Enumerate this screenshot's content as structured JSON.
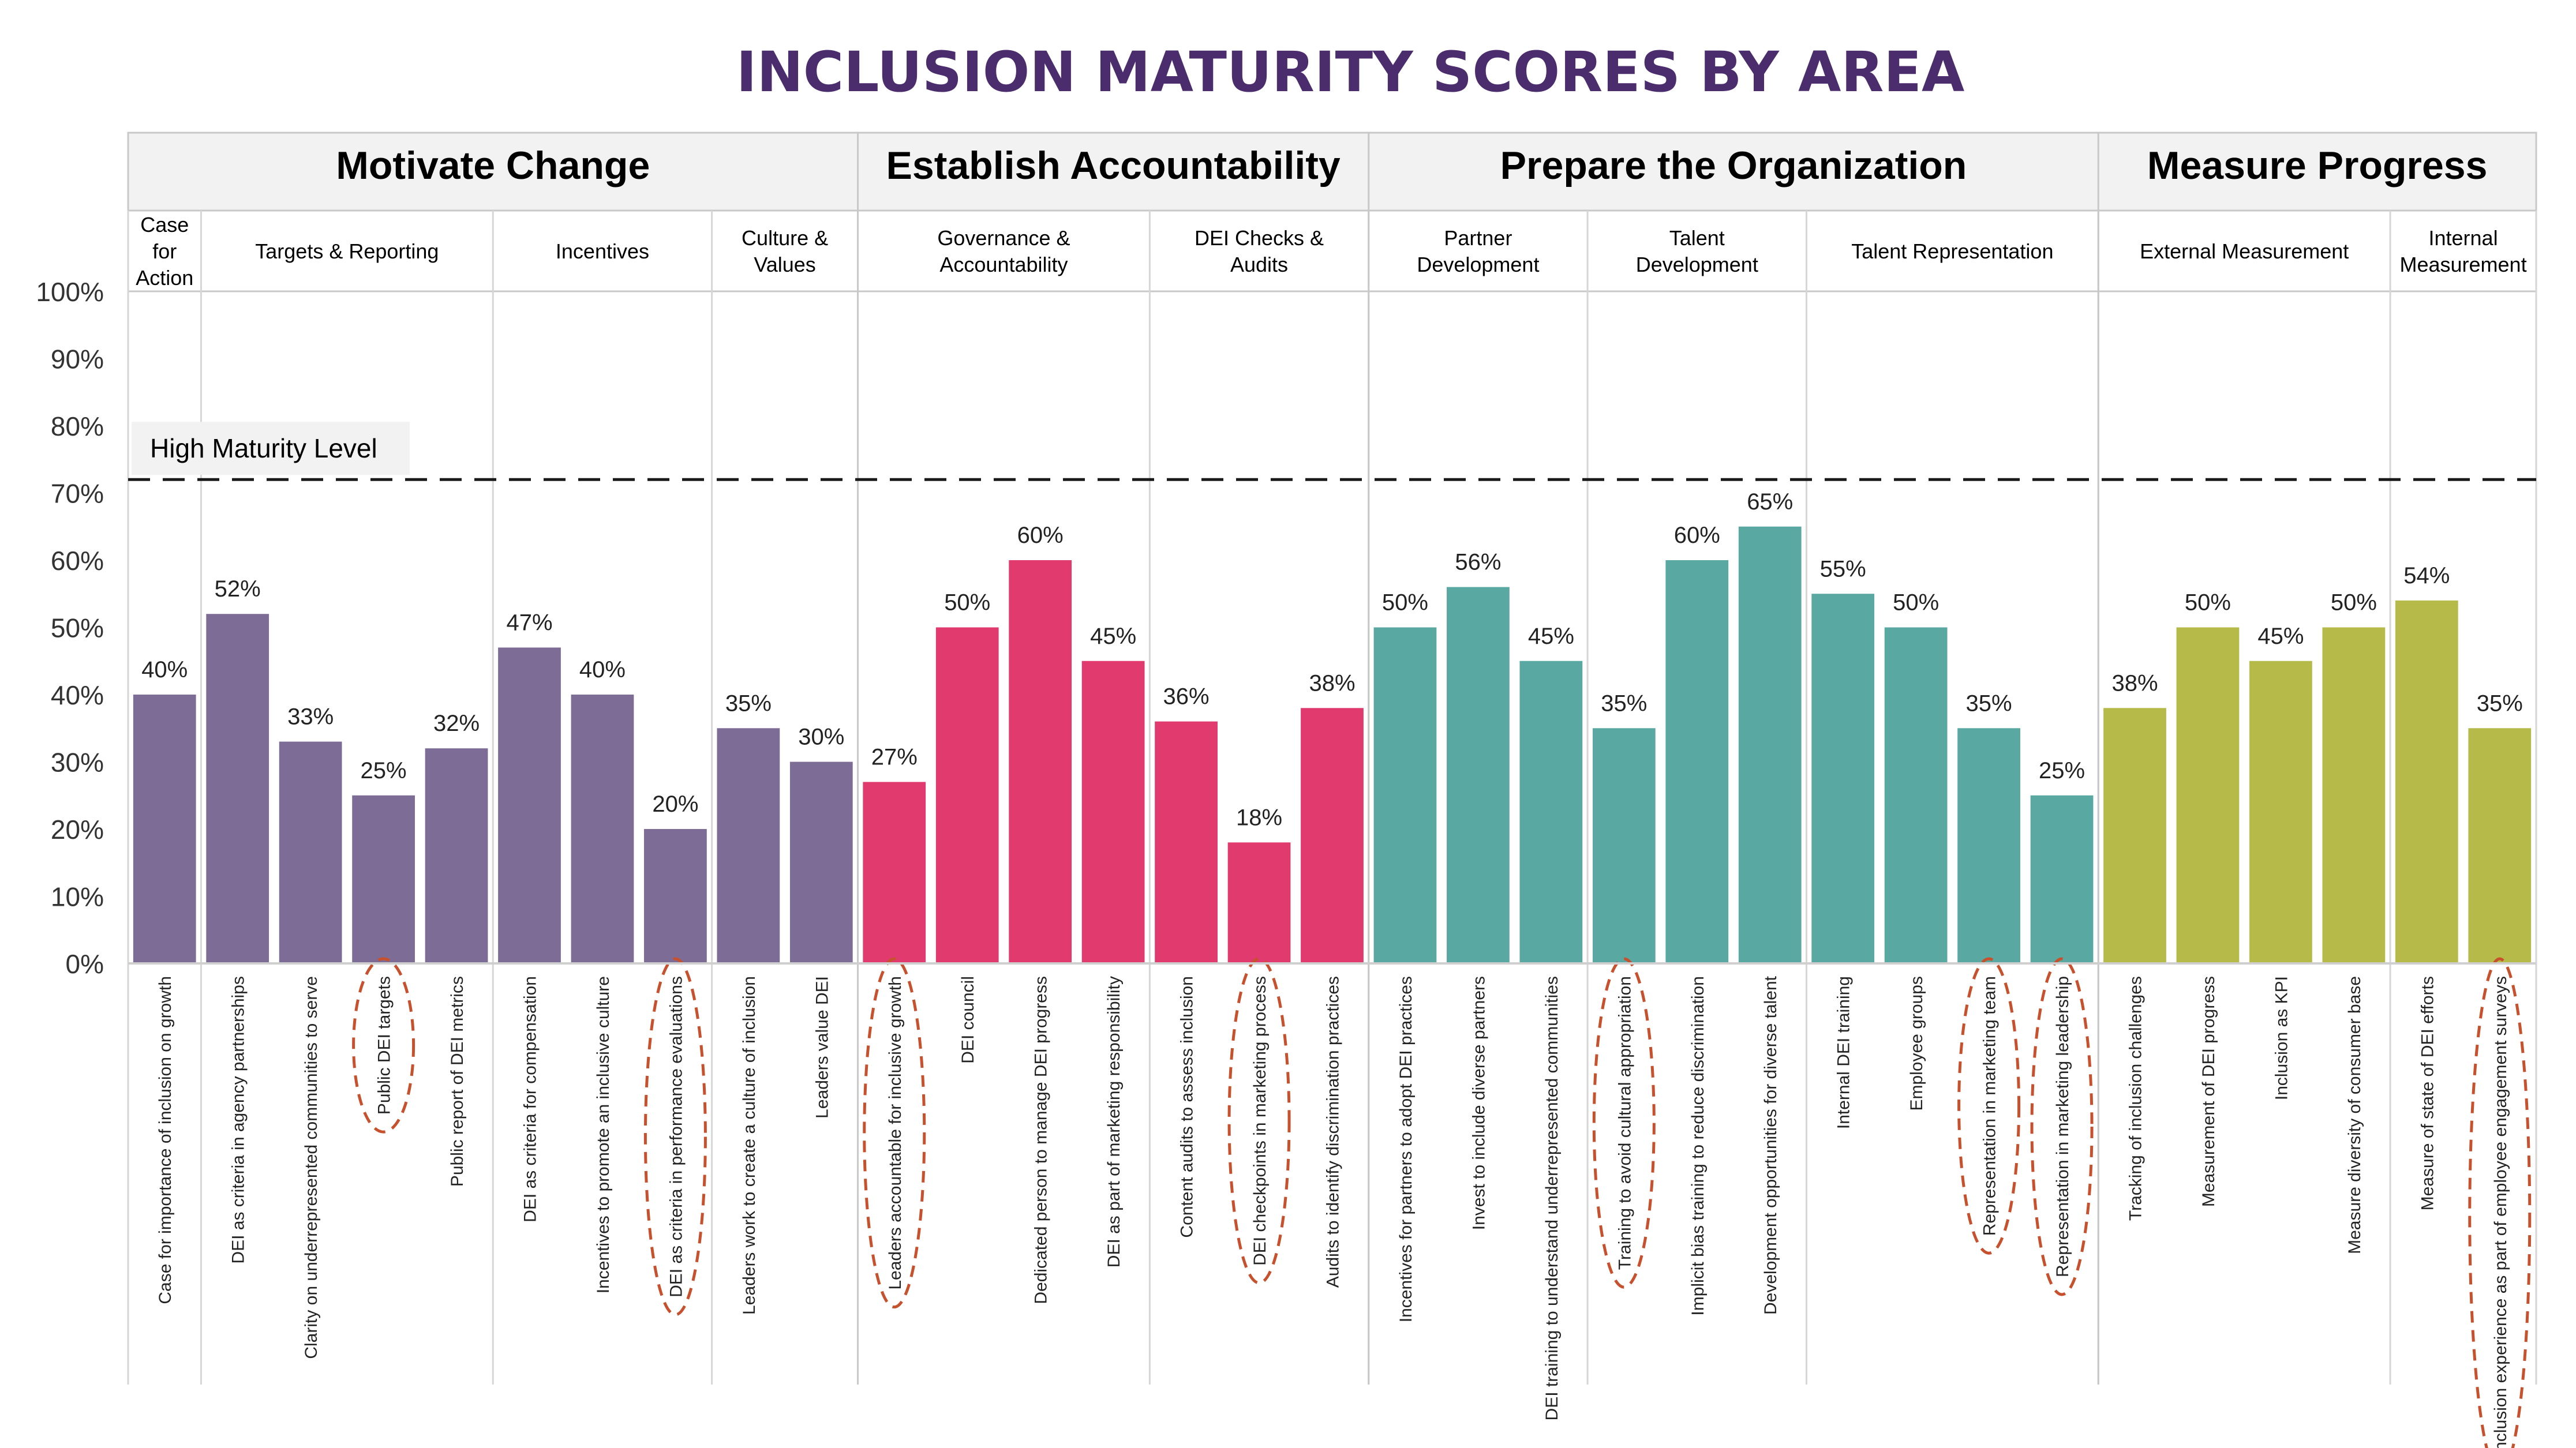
{
  "chart_data": {
    "type": "bar",
    "title": "INCLUSION MATURITY SCORES BY AREA",
    "ylim": [
      0,
      100
    ],
    "yticks": [
      "0%",
      "10%",
      "20%",
      "30%",
      "40%",
      "50%",
      "60%",
      "70%",
      "80%",
      "90%",
      "100%"
    ],
    "value_suffix": "%",
    "reference_line": {
      "label": "High Maturity Level",
      "value": 72,
      "style": "dashed"
    },
    "groups": [
      {
        "name": "Motivate Change",
        "color": "#7d6c96",
        "subgroups": [
          {
            "name": "Case for Action",
            "lines": [
              "Case",
              "for",
              "Action"
            ],
            "items": [
              {
                "label": "Case for importance of inclusion on growth",
                "value": 40,
                "circled": false
              }
            ]
          },
          {
            "name": "Targets & Reporting",
            "lines": [
              "Targets & Reporting"
            ],
            "items": [
              {
                "label": "DEI as criteria in agency partnerships",
                "value": 52,
                "circled": false
              },
              {
                "label": "Clarity on underrepresented communities to serve",
                "value": 33,
                "circled": false
              },
              {
                "label": "Public DEI targets",
                "value": 25,
                "circled": true
              },
              {
                "label": "Public report of DEI metrics",
                "value": 32,
                "circled": false
              }
            ]
          },
          {
            "name": "Incentives",
            "lines": [
              "Incentives"
            ],
            "items": [
              {
                "label": "DEI as criteria for compensation",
                "value": 47,
                "circled": false
              },
              {
                "label": "Incentives to promote an inclusive culture",
                "value": 40,
                "circled": false
              },
              {
                "label": "DEI as criteria in performance evaluations",
                "value": 20,
                "circled": true
              }
            ]
          },
          {
            "name": "Culture & Values",
            "lines": [
              "Culture &",
              "Values"
            ],
            "items": [
              {
                "label": "Leaders work to create a culture of inclusion",
                "value": 35,
                "circled": false
              },
              {
                "label": "Leaders value DEI",
                "value": 30,
                "circled": false
              }
            ]
          }
        ]
      },
      {
        "name": "Establish Accountability",
        "color": "#e03a6e",
        "subgroups": [
          {
            "name": "Governance & Accountability",
            "lines": [
              "Governance &",
              "Accountability"
            ],
            "items": [
              {
                "label": "Leaders accountable for inclusive growth",
                "value": 27,
                "circled": true
              },
              {
                "label": "DEI council",
                "value": 50,
                "circled": false
              },
              {
                "label": "Dedicated person to manage DEI progress",
                "value": 60,
                "circled": false
              },
              {
                "label": "DEI as part of marketing responsibility",
                "value": 45,
                "circled": false
              }
            ]
          },
          {
            "name": "DEI Checks & Audits",
            "lines": [
              "DEI Checks &",
              "Audits"
            ],
            "items": [
              {
                "label": "Content audits to assess inclusion",
                "value": 36,
                "circled": false
              },
              {
                "label": "DEI checkpoints in marketing process",
                "value": 18,
                "circled": true
              },
              {
                "label": "Audits to identify discrimination practices",
                "value": 38,
                "circled": false
              }
            ]
          }
        ]
      },
      {
        "name": "Prepare the Organization",
        "color": "#5aa8a2",
        "subgroups": [
          {
            "name": "Partner Development",
            "lines": [
              "Partner",
              "Development"
            ],
            "items": [
              {
                "label": "Incentives for partners to adopt DEI practices",
                "value": 50,
                "circled": false
              },
              {
                "label": "Invest to include diverse partners",
                "value": 56,
                "circled": false
              },
              {
                "label": "DEI training to understand underrepresented communities",
                "value": 45,
                "circled": false
              }
            ]
          },
          {
            "name": "Talent Development",
            "lines": [
              "Talent",
              "Development"
            ],
            "items": [
              {
                "label": "Training to avoid cultural appropriation",
                "value": 35,
                "circled": true
              },
              {
                "label": "Implicit bias training to reduce discrimination",
                "value": 60,
                "circled": false
              },
              {
                "label": "Development opportunities for diverse talent",
                "value": 65,
                "circled": false
              }
            ]
          },
          {
            "name": "Talent Representation",
            "lines": [
              "Talent Representation"
            ],
            "items": [
              {
                "label": "Internal DEI training",
                "value": 55,
                "circled": false
              },
              {
                "label": "Employee groups",
                "value": 50,
                "circled": false
              },
              {
                "label": "Representation in marketing team",
                "value": 35,
                "circled": true
              },
              {
                "label": "Representation in marketing leadership",
                "value": 25,
                "circled": true
              }
            ]
          }
        ]
      },
      {
        "name": "Measure Progress",
        "color": "#b5ba48",
        "subgroups": [
          {
            "name": "External Measurement",
            "lines": [
              "External Measurement"
            ],
            "items": [
              {
                "label": "Tracking of inclusion challenges",
                "value": 38,
                "circled": false
              },
              {
                "label": "Measurement of DEI progress",
                "value": 50,
                "circled": false
              },
              {
                "label": "Inclusion as KPI",
                "value": 45,
                "circled": false
              },
              {
                "label": "Measure diversity of consumer base",
                "value": 50,
                "circled": false
              }
            ]
          },
          {
            "name": "Internal Measurement",
            "lines": [
              "Internal",
              "Measurement"
            ],
            "items": [
              {
                "label": "Measure of state of DEI efforts",
                "value": 54,
                "circled": false
              },
              {
                "label": "Inclusion experience as part of employee engagement surveys",
                "value": 35,
                "circled": true
              }
            ]
          }
        ]
      }
    ]
  }
}
